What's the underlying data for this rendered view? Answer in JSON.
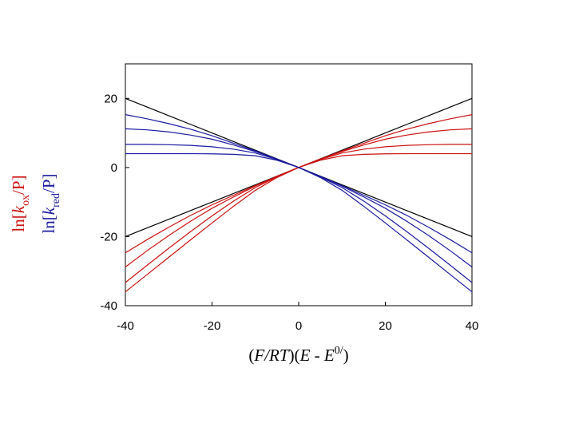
{
  "chart_data": {
    "type": "line",
    "x": [
      -40,
      -35,
      -30,
      -25,
      -20,
      -15,
      -10,
      -5,
      0,
      5,
      10,
      15,
      20,
      25,
      30,
      35,
      40
    ],
    "series": [
      {
        "color": "#000000",
        "values": [
          20,
          17.5,
          15,
          12.5,
          10,
          7.5,
          5,
          2.5,
          0,
          -2.5,
          -5,
          -7.5,
          -10,
          -12.5,
          -15,
          -17.5,
          -20
        ]
      },
      {
        "color": "#000000",
        "values": [
          -20,
          -17.5,
          -15,
          -12.5,
          -10,
          -7.5,
          -5,
          -2.5,
          0,
          2.5,
          5,
          7.5,
          10,
          12.5,
          15,
          17.5,
          20
        ]
      },
      {
        "color": "#cc1111",
        "values": [
          -24.7,
          -20.9,
          -17.3,
          -13.9,
          -10.8,
          -8.0,
          -5.2,
          -2.55,
          0,
          2.45,
          4.8,
          7.0,
          9.2,
          11.1,
          12.7,
          14.1,
          15.3
        ]
      },
      {
        "color": "#cc1111",
        "values": [
          -28.8,
          -24.1,
          -19.7,
          -15.6,
          -11.8,
          -8.5,
          -5.4,
          -2.6,
          0,
          2.4,
          4.6,
          6.5,
          8.2,
          9.4,
          10.3,
          10.9,
          11.2
        ]
      },
      {
        "color": "#cc1111",
        "values": [
          -33.3,
          -28.3,
          -23.4,
          -18.6,
          -14.0,
          -9.7,
          -5.8,
          -2.7,
          0,
          2.3,
          4.2,
          5.3,
          6.0,
          6.4,
          6.6,
          6.7,
          6.7
        ]
      },
      {
        "color": "#cc1111",
        "values": [
          -36,
          -31,
          -26,
          -21,
          -16.05,
          -11.2,
          -6.6,
          -2.9,
          0,
          2.1,
          3.4,
          3.8,
          3.95,
          4.0,
          4.0,
          4.0,
          4.0
        ]
      },
      {
        "color": "#1a1aa0",
        "values": [
          15.3,
          14.1,
          12.7,
          11.1,
          9.2,
          7.0,
          4.8,
          2.45,
          0,
          -2.55,
          -5.2,
          -8.0,
          -10.8,
          -13.9,
          -17.3,
          -20.9,
          -24.7
        ]
      },
      {
        "color": "#1a1aa0",
        "values": [
          11.2,
          10.9,
          10.3,
          9.4,
          8.2,
          6.5,
          4.6,
          2.4,
          0,
          -2.6,
          -5.4,
          -8.5,
          -11.8,
          -15.6,
          -19.7,
          -24.1,
          -28.8
        ]
      },
      {
        "color": "#1a1aa0",
        "values": [
          6.7,
          6.7,
          6.6,
          6.4,
          6.0,
          5.3,
          4.2,
          2.3,
          0,
          -2.7,
          -5.8,
          -9.7,
          -14.0,
          -18.6,
          -23.4,
          -28.3,
          -33.3
        ]
      },
      {
        "color": "#1a1aa0",
        "values": [
          4.0,
          4.0,
          4.0,
          4.0,
          3.95,
          3.8,
          3.4,
          2.1,
          0,
          -2.9,
          -6.6,
          -11.2,
          -16.05,
          -21,
          -26,
          -31,
          -36
        ]
      }
    ],
    "xlim": [
      -40,
      40
    ],
    "xticks": [
      -40,
      -20,
      0,
      20,
      40
    ],
    "ylim": [
      -40,
      30
    ],
    "yticks": [
      -40,
      -20,
      0,
      20
    ],
    "xlabel": [
      "(",
      "F/RT",
      ")(",
      "E",
      " - ",
      "E",
      "0/",
      ")"
    ],
    "ylabel_ox": [
      "ln[",
      "k",
      "ox",
      "/P]"
    ],
    "ylabel_red": [
      "ln[",
      "k",
      "red",
      "/P]"
    ],
    "ylabel_ox_color": "#cc1111",
    "ylabel_red_color": "#1a1aa0"
  }
}
